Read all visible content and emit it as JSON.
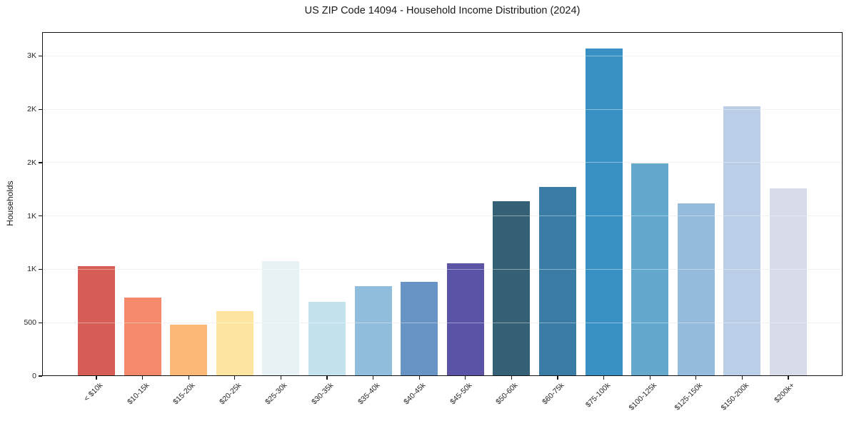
{
  "chart_data": {
    "type": "bar",
    "title": "US ZIP Code 14094 - Household Income Distribution (2024)",
    "xlabel": "",
    "ylabel": "Households",
    "categories": [
      "< $10k",
      "$10-15k",
      "$15-20k",
      "$20-25k",
      "$25-30k",
      "$30-35k",
      "$35-40k",
      "$40-45k",
      "$45-50k",
      "$50-60k",
      "$60-75k",
      "$75-100k",
      "$100-125k",
      "$125-150k",
      "$150-200k",
      "$200k+"
    ],
    "values": [
      1030,
      735,
      480,
      610,
      1080,
      695,
      845,
      885,
      1055,
      1640,
      1775,
      3070,
      1990,
      1620,
      2530,
      1760
    ],
    "bar_colors": [
      "#d65d56",
      "#f5896b",
      "#fcb877",
      "#fde59f",
      "#e7f2f5",
      "#c4e1ee",
      "#90bddc",
      "#6793c5",
      "#5b54a6",
      "#366076",
      "#3a7ca5",
      "#3890c3",
      "#64a8cd",
      "#94badc",
      "#bacee8",
      "#d8dbea"
    ],
    "ylim": [
      0,
      3224
    ],
    "yticks": [
      {
        "value": 0,
        "label": "0"
      },
      {
        "value": 500,
        "label": "500"
      },
      {
        "value": 1000,
        "label": "1K"
      },
      {
        "value": 1500,
        "label": "1K"
      },
      {
        "value": 2000,
        "label": "2K"
      },
      {
        "value": 2500,
        "label": "2K"
      },
      {
        "value": 3000,
        "label": "3K"
      }
    ],
    "grid": "horizontal",
    "legend": "none"
  },
  "style": {
    "background": "#ffffff",
    "grid_color": "#e8e8e8",
    "spine_color": "#141414",
    "text_color": "#262626"
  }
}
